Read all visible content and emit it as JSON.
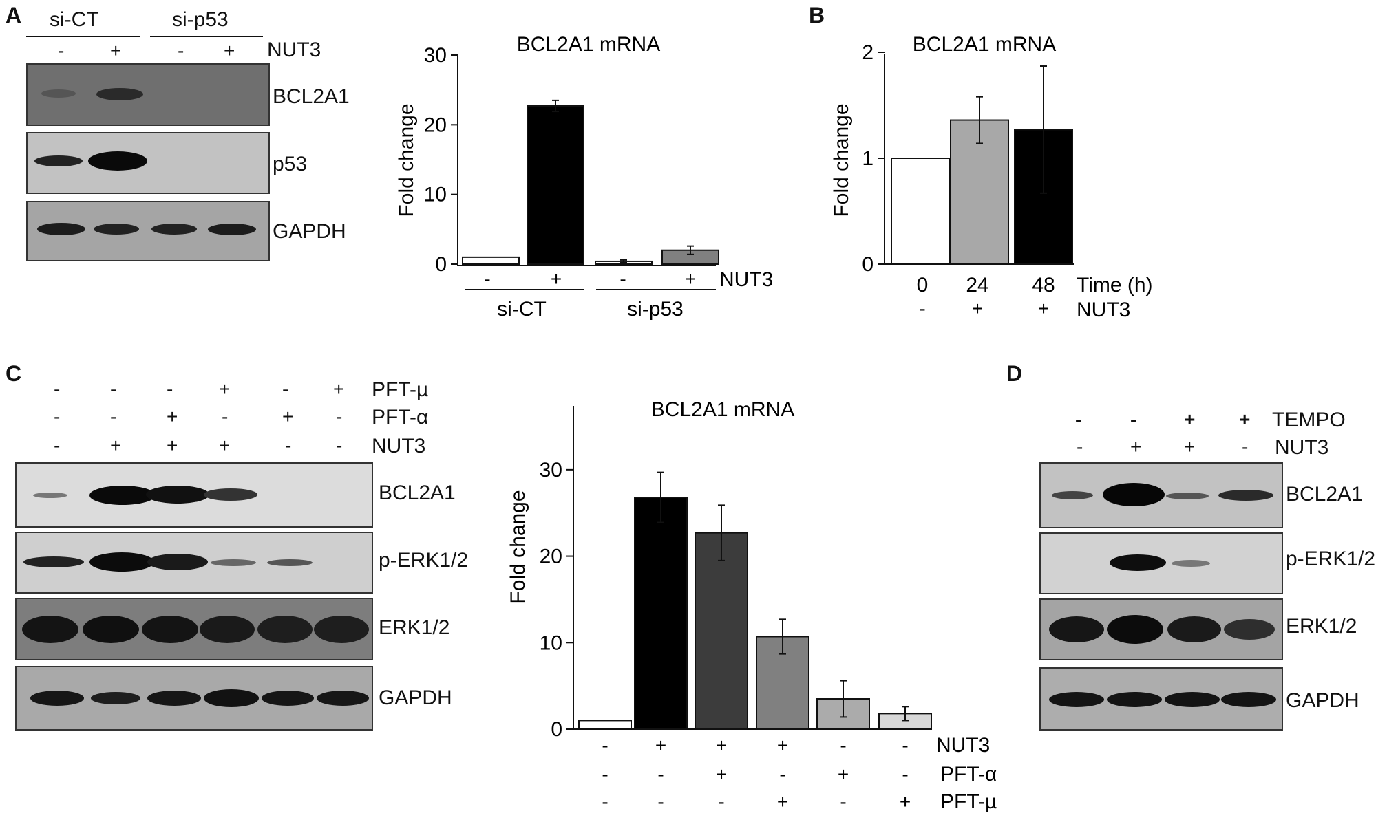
{
  "panels": {
    "A": {
      "letter": "A",
      "groups": [
        "si-CT",
        "si-p53"
      ],
      "nut3_signs": [
        "-",
        "+",
        "-",
        "+"
      ],
      "treatment_label": "NUT3",
      "blots": [
        "BCL2A1",
        "p53",
        "GAPDH"
      ]
    },
    "B": {
      "letter": "B"
    },
    "C": {
      "letter": "C",
      "rows": [
        {
          "label": "PFT-µ",
          "signs": [
            "-",
            "-",
            "-",
            "+",
            "-",
            "+"
          ]
        },
        {
          "label": "PFT-α",
          "signs": [
            "-",
            "-",
            "+",
            "-",
            "+",
            "-"
          ]
        },
        {
          "label": "NUT3",
          "signs": [
            "-",
            "+",
            "+",
            "+",
            "-",
            "-"
          ]
        }
      ],
      "blots": [
        "BCL2A1",
        "p-ERK1/2",
        "ERK1/2",
        "GAPDH"
      ]
    },
    "D": {
      "letter": "D",
      "rows": [
        {
          "label": "TEMPO",
          "signs": [
            "-",
            "-",
            "+",
            "+"
          ]
        },
        {
          "label": "NUT3",
          "signs": [
            "-",
            "+",
            "+",
            "-"
          ]
        }
      ],
      "blots": [
        "BCL2A1",
        "p-ERK1/2",
        "ERK1/2",
        "GAPDH"
      ]
    }
  },
  "chart_data": [
    {
      "type": "bar",
      "panel": "A",
      "title": "BCL2A1 mRNA",
      "ylabel": "Fold change",
      "ylim": [
        0,
        30
      ],
      "yticks": [
        0,
        10,
        20,
        30
      ],
      "values": [
        1,
        22.7,
        0.4,
        2
      ],
      "errors": [
        0,
        0.8,
        0.2,
        0.6
      ],
      "colors": [
        "#ffffff",
        "#000000",
        "#ffffff",
        "#808080"
      ],
      "categories": [
        "-",
        "+",
        "-",
        "+"
      ],
      "treatment_label": "NUT3",
      "groups": [
        "si-CT",
        "si-p53"
      ]
    },
    {
      "type": "bar",
      "panel": "B",
      "title": "BCL2A1 mRNA",
      "ylabel": "Fold change",
      "ylim": [
        0,
        2
      ],
      "yticks": [
        0,
        1,
        2
      ],
      "categories": [
        "0",
        "24",
        "48"
      ],
      "values": [
        1,
        1.36,
        1.27
      ],
      "errors": [
        0,
        0.22,
        0.6
      ],
      "colors": [
        "#ffffff",
        "#a8a8a8",
        "#000000"
      ],
      "xlabel": "Time (h)",
      "treatment_label": "NUT3",
      "treatment_signs": [
        "-",
        "+",
        "+"
      ]
    },
    {
      "type": "bar",
      "panel": "C",
      "title": "BCL2A1 mRNA",
      "ylabel": "Fold change",
      "ylim": [
        0,
        35
      ],
      "yticks": [
        0,
        10,
        20,
        30
      ],
      "values": [
        1,
        26.8,
        22.7,
        10.7,
        3.5,
        1.8
      ],
      "errors": [
        0,
        2.9,
        3.2,
        2.0,
        2.1,
        0.8
      ],
      "colors": [
        "#ffffff",
        "#000000",
        "#3c3c3c",
        "#808080",
        "#ababab",
        "#d8d8d8"
      ],
      "sign_rows": [
        {
          "label": "NUT3",
          "signs": [
            "-",
            "+",
            "+",
            "+",
            "-",
            "-"
          ]
        },
        {
          "label": "PFT-α",
          "signs": [
            "-",
            "-",
            "+",
            "-",
            "+",
            "-"
          ]
        },
        {
          "label": "PFT-µ",
          "signs": [
            "-",
            "-",
            "-",
            "+",
            "-",
            "+"
          ]
        }
      ]
    }
  ]
}
